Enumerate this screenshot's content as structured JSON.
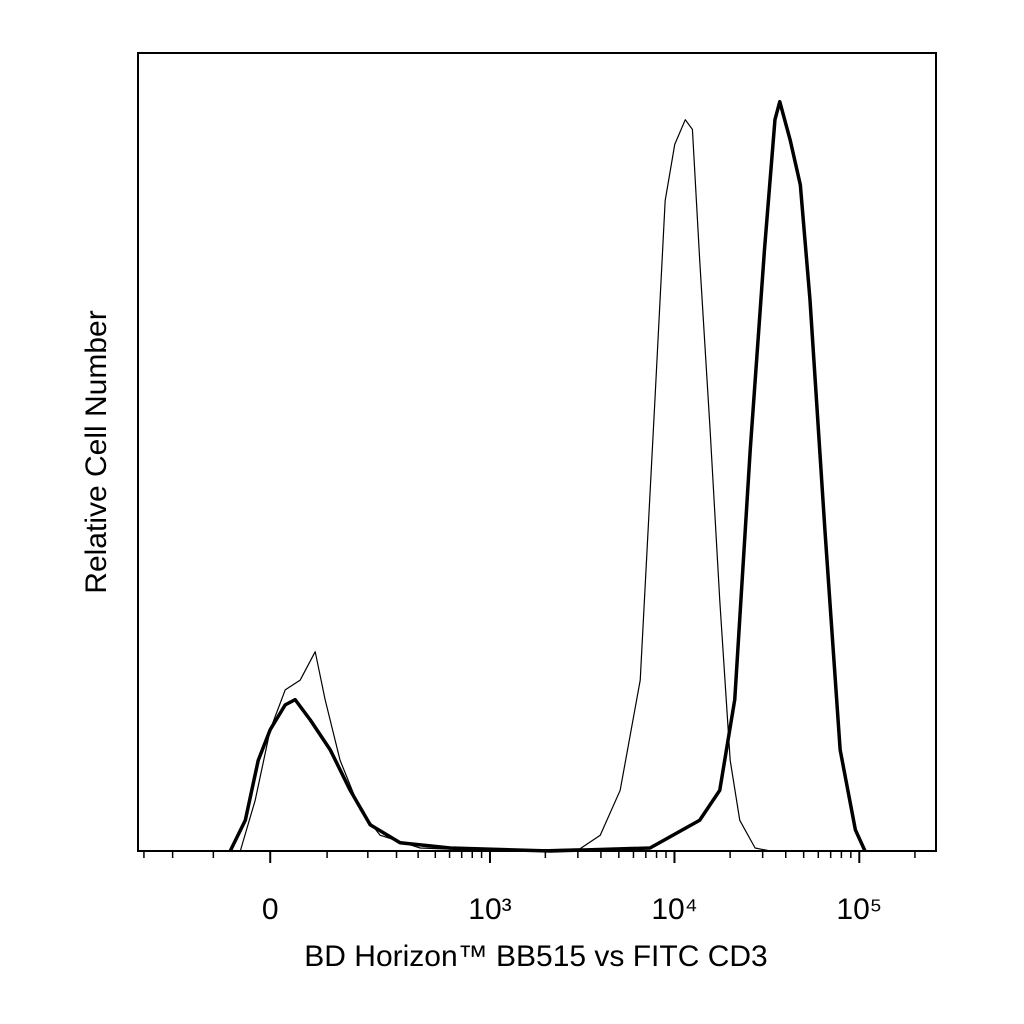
{
  "chart_data": {
    "type": "histogram-overlay",
    "xlabel": "BD Horizon™ BB515 vs FITC CD3",
    "ylabel": "Relative Cell Number",
    "xscale": "biexponential",
    "xlim": [
      -325,
      260000
    ],
    "ylim": [
      0,
      106.5
    ],
    "xticks": [
      {
        "value": 0,
        "label": "0"
      },
      {
        "value": 1000,
        "label": "10³"
      },
      {
        "value": 10000,
        "label": "10⁴"
      },
      {
        "value": 100000,
        "label": "10⁵"
      }
    ],
    "xminorticks": [
      -300,
      -200,
      -100,
      100,
      200,
      300,
      400,
      500,
      600,
      700,
      800,
      900,
      2000,
      3000,
      4000,
      5000,
      6000,
      7000,
      8000,
      9000,
      20000,
      30000,
      40000,
      50000,
      60000,
      70000,
      80000,
      90000,
      200000
    ],
    "series": [
      {
        "color": "#000000",
        "linewidth": 1.2,
        "x": [
          -58.6,
          -49.6,
          -24.4,
          0,
          24.4,
          49.6,
          76.7,
          96,
          128,
          178,
          239,
          411,
          1137,
          3083,
          3965,
          5083,
          6526,
          7839,
          8905,
          10036,
          11440,
          12506,
          13689,
          15587,
          17576,
          20020,
          22555,
          27300,
          33020
        ],
        "values": [
          0,
          0,
          6.8,
          16.2,
          21.5,
          22.8,
          26.6,
          20.2,
          12.1,
          5.5,
          2.1,
          0.4,
          0,
          0.3,
          2.1,
          8.1,
          22.8,
          60.2,
          86.8,
          94.3,
          97.6,
          96.3,
          78.9,
          56.2,
          33.5,
          12.1,
          4.1,
          0.4,
          0
        ]
      },
      {
        "color": "#000000",
        "linewidth": 3.5,
        "x": [
          -67.5,
          -41,
          -19.5,
          0,
          24.4,
          41,
          67.5,
          106.5,
          152,
          207,
          315,
          605,
          2130,
          7371,
          13689,
          17576,
          21190,
          25690,
          30680,
          34970,
          37130,
          42250,
          47970,
          54080,
          65130,
          78780,
          95290,
          107400
        ],
        "values": [
          0,
          4.1,
          12.1,
          16.2,
          19.5,
          20.2,
          17.5,
          13.5,
          8.1,
          3.5,
          1.1,
          0.4,
          0,
          0.4,
          4.1,
          8.1,
          20.2,
          53.5,
          80.2,
          97.6,
          100,
          94.9,
          88.9,
          73.6,
          42.9,
          13.5,
          2.8,
          0
        ]
      }
    ]
  }
}
